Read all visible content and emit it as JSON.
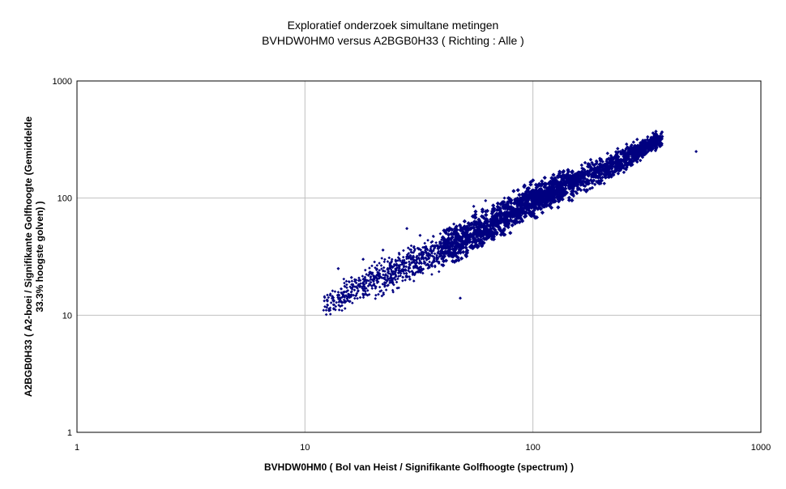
{
  "chart_data": {
    "type": "scatter",
    "title": "Exploratief onderzoek simultane metingen",
    "subtitle": "BVHDW0HM0 versus A2BGB0H33 ( Richting : Alle )",
    "xlabel": "BVHDW0HM0 ( Bol van Heist / Signifikante Golfhoogte (spectrum) )",
    "ylabel_lines": [
      "A2BGB0H33 ( A2-boei / Signifikante Golfhoogte (Gemiddelde",
      "33.3% hoogste golven) )"
    ],
    "x_scale": "log",
    "y_scale": "log",
    "xlim": [
      1,
      1000
    ],
    "ylim": [
      1,
      1000
    ],
    "x_ticks": [
      "1",
      "10",
      "100",
      "1000"
    ],
    "y_ticks": [
      "1",
      "10",
      "100",
      "1000"
    ],
    "grid": true,
    "legend": "none",
    "marker_color": "#000080",
    "marker": "diamond",
    "series": [
      {
        "trend": {
          "x_range": [
            12,
            370
          ],
          "slope": 0.98,
          "intercept_at_x100": 105
        },
        "band_edges": [
          [
            12,
            8.5,
            17
          ],
          [
            20,
            12,
            32
          ],
          [
            40,
            22,
            58
          ],
          [
            60,
            32,
            88
          ],
          [
            100,
            62,
            150
          ],
          [
            200,
            120,
            250
          ],
          [
            360,
            250,
            400
          ]
        ],
        "outliers": [
          [
            12.5,
            13.5
          ],
          [
            14,
            25
          ],
          [
            16,
            21
          ],
          [
            18,
            30
          ],
          [
            22,
            36
          ],
          [
            28,
            55
          ],
          [
            32,
            48
          ],
          [
            45,
            60
          ],
          [
            48,
            14
          ],
          [
            55,
            85
          ],
          [
            62,
            95
          ],
          [
            75,
            100
          ],
          [
            520,
            250
          ]
        ]
      }
    ]
  }
}
